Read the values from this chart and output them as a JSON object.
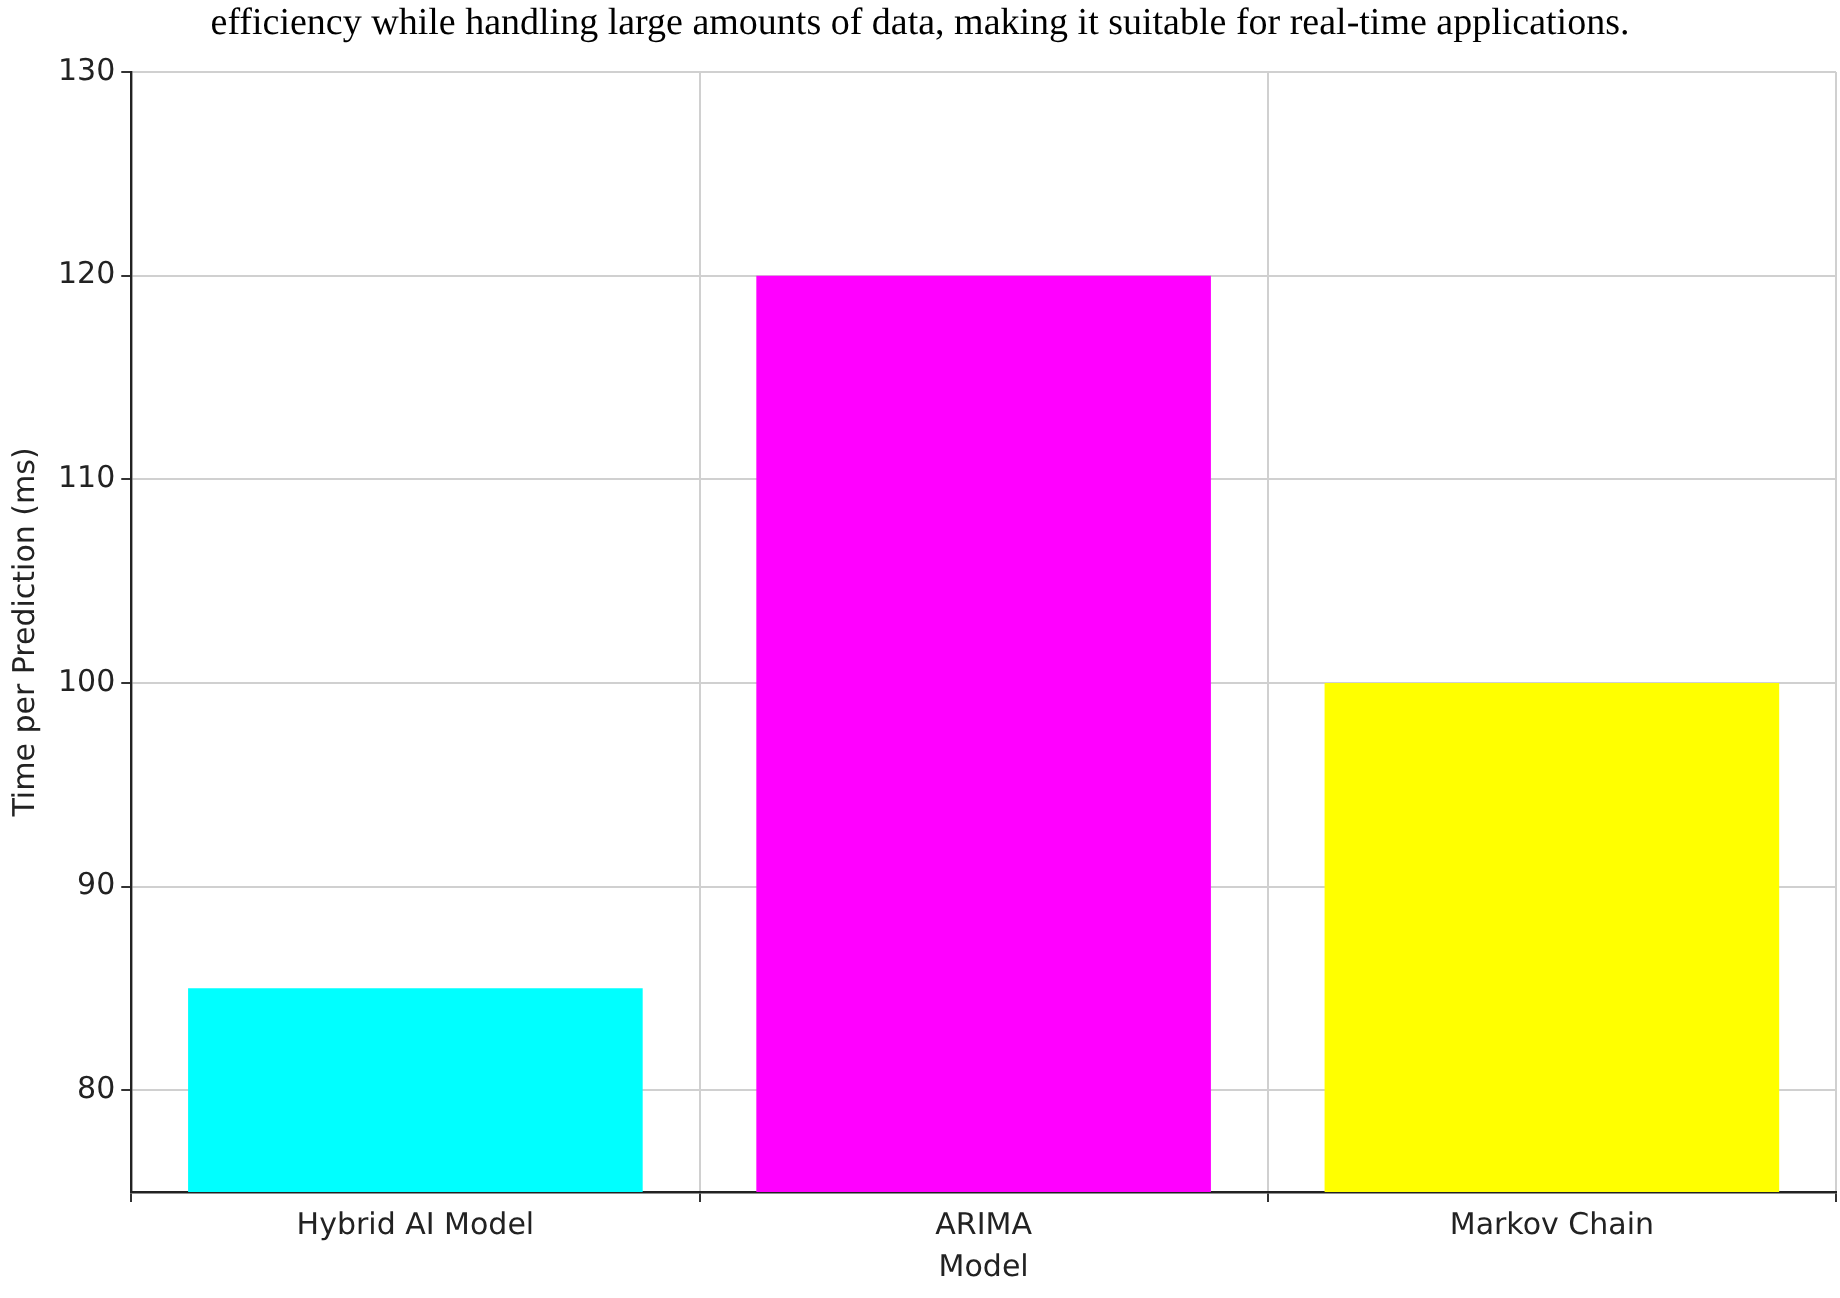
{
  "chart_data": {
    "type": "bar",
    "title": "efficiency while handling large amounts of data, making it suitable for real-time applications.",
    "categories": [
      "Hybrid AI Model",
      "ARIMA",
      "Markov Chain"
    ],
    "values": [
      85,
      120,
      100
    ],
    "colors": [
      "#00ffff",
      "#ff00ff",
      "#ffff00"
    ],
    "xlabel": "Model",
    "ylabel": "Time per Prediction (ms)",
    "ylim": [
      75,
      130
    ],
    "yticks": [
      80,
      90,
      100,
      110,
      120,
      130
    ],
    "grid": true,
    "legend": false
  }
}
